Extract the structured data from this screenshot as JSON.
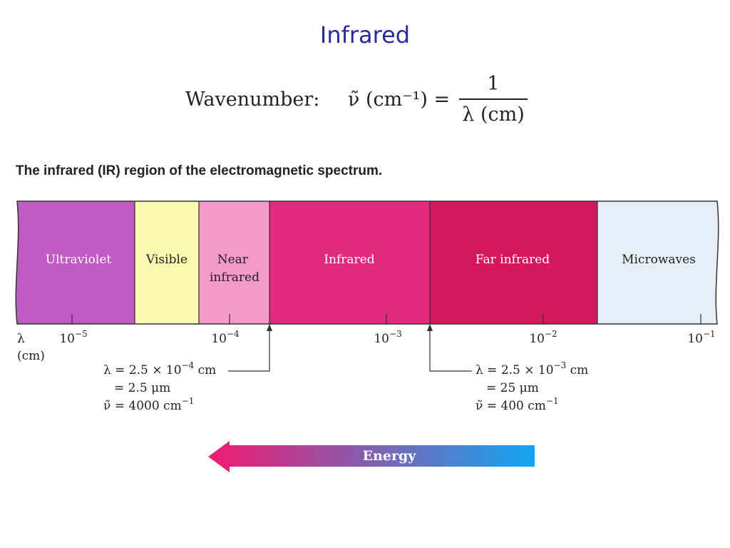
{
  "title": "Infrared",
  "formula": {
    "label": "Wavenumber:",
    "lhs": "ν̃ (cm⁻¹) =",
    "numerator": "1",
    "denominator": "λ (cm)"
  },
  "subtitle": "The infrared (IR) region of the electromagnetic spectrum.",
  "spectrum": {
    "regions": [
      {
        "lines": [
          "Ultraviolet"
        ],
        "color": "#c25ac4",
        "text_color": "#ffffff"
      },
      {
        "lines": [
          "Visible"
        ],
        "color": "#fafab0",
        "text_color": "#222222"
      },
      {
        "lines": [
          "Near",
          "infrared"
        ],
        "color": "#f59ac8",
        "text_color": "#222222"
      },
      {
        "lines": [
          "Infrared"
        ],
        "color": "#e02a7e",
        "text_color": "#ffffff"
      },
      {
        "lines": [
          "Far infrared"
        ],
        "color": "#d5175e",
        "text_color": "#ffffff"
      },
      {
        "lines": [
          "Microwaves"
        ],
        "color": "#e4f0f6",
        "text_color": "#222222"
      }
    ],
    "axis_symbol": "λ",
    "axis_unit": "(cm)",
    "ticks": [
      {
        "base": "10",
        "exp": "−5"
      },
      {
        "base": "10",
        "exp": "−4"
      },
      {
        "base": "10",
        "exp": "−3"
      },
      {
        "base": "10",
        "exp": "−2"
      },
      {
        "base": "10",
        "exp": "−1"
      }
    ]
  },
  "annotations": {
    "left": {
      "line1": {
        "pre": "λ = 2.5 × 10",
        "exp": "−4",
        "post": " cm"
      },
      "line2": "= 2.5 μm",
      "line3": {
        "pre": "ν̃ = 4000 cm",
        "exp": "−1"
      }
    },
    "right": {
      "line1": {
        "pre": "λ = 2.5 × 10",
        "exp": "−3",
        "post": " cm"
      },
      "line2": "= 25 μm",
      "line3": {
        "pre": "ν̃ = 400 cm",
        "exp": "−1"
      }
    }
  },
  "energy": {
    "label": "Energy",
    "color_start": "#f01a70",
    "color_end": "#12a6f2"
  }
}
